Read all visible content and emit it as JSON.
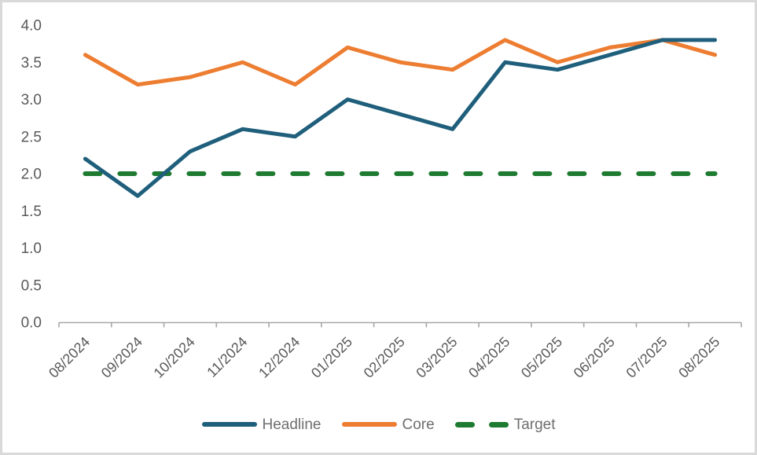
{
  "window": {
    "background_color": "#ffffff",
    "border_color": "#d9d9d9"
  },
  "chart_data": {
    "type": "line",
    "title": "",
    "xlabel": "",
    "ylabel": "",
    "categories": [
      "08/2024",
      "09/2024",
      "10/2024",
      "11/2024",
      "12/2024",
      "01/2025",
      "02/2025",
      "03/2025",
      "04/2025",
      "05/2025",
      "06/2025",
      "07/2025",
      "08/2025"
    ],
    "series": [
      {
        "name": "Headline",
        "color": "#1f5f7c",
        "line_style": "solid",
        "values": [
          2.2,
          1.7,
          2.3,
          2.6,
          2.5,
          3.0,
          2.8,
          2.6,
          3.5,
          3.4,
          3.6,
          3.8,
          3.8
        ]
      },
      {
        "name": "Core",
        "color": "#ed7d31",
        "line_style": "solid",
        "values": [
          3.6,
          3.2,
          3.3,
          3.5,
          3.2,
          3.7,
          3.5,
          3.4,
          3.8,
          3.5,
          3.7,
          3.8,
          3.6
        ]
      },
      {
        "name": "Target",
        "color": "#1e7b31",
        "line_style": "dashed",
        "values": [
          2.0,
          2.0,
          2.0,
          2.0,
          2.0,
          2.0,
          2.0,
          2.0,
          2.0,
          2.0,
          2.0,
          2.0,
          2.0
        ]
      }
    ],
    "ylim": [
      0.0,
      4.0
    ],
    "ytick_step": 0.5,
    "ytick_labels": [
      "0.0",
      "0.5",
      "1.0",
      "1.5",
      "2.0",
      "2.5",
      "3.0",
      "3.5",
      "4.0"
    ],
    "grid": false,
    "legend_position": "bottom",
    "x_tick_label_rotation_deg": -45,
    "axis_color": "#a6a6a6",
    "tick_label_color": "#595959",
    "legend_text_color": "#6e6e6e"
  }
}
